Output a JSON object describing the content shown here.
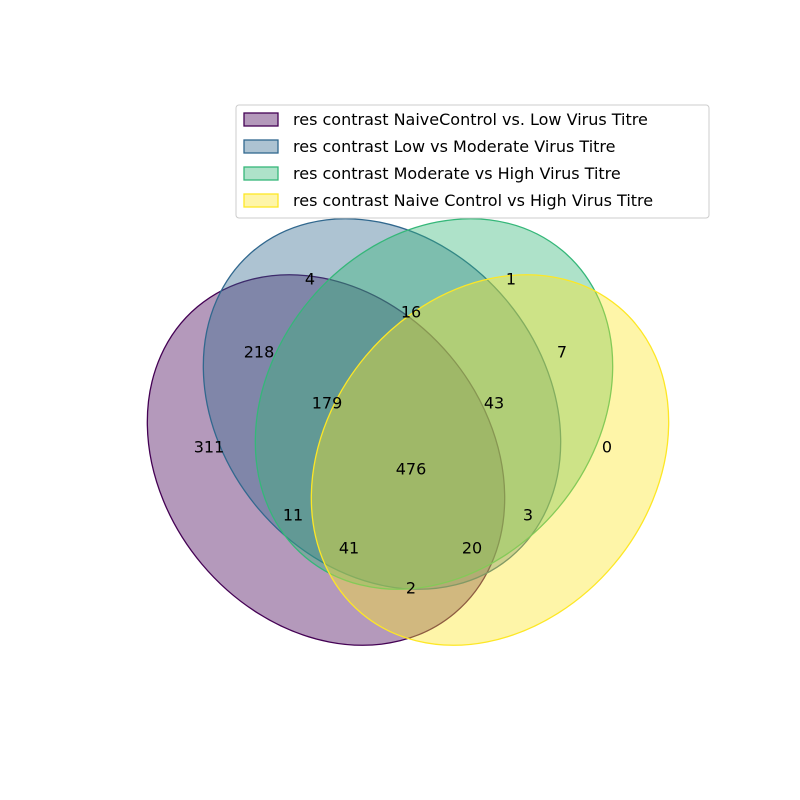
{
  "sets": [
    {
      "name": "res contrast NaiveControl vs. Low Virus Titre",
      "color": "#440154"
    },
    {
      "name": "res contrast Low vs Moderate Virus Titre",
      "color": "#31688e"
    },
    {
      "name": "res contrast Moderate vs High Virus Titre",
      "color": "#35b779"
    },
    {
      "name": "res contrast Naive Control vs High Virus Titre",
      "color": "#fde725"
    }
  ],
  "regions": {
    "A": "311",
    "B": "4",
    "C": "1",
    "D": "0",
    "AB": "218",
    "BC": "16",
    "CD": "7",
    "AD": "2",
    "AC": "11",
    "BD": "3",
    "ABC": "179",
    "BCD": "43",
    "ACD": "41",
    "ABD": "20",
    "ABCD": "476"
  }
}
